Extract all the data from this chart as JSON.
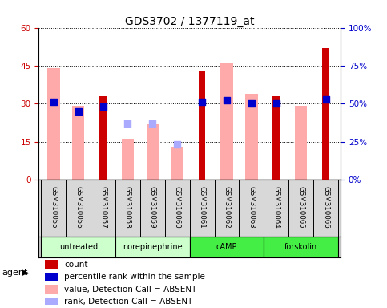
{
  "title": "GDS3702 / 1377119_at",
  "samples": [
    "GSM310055",
    "GSM310056",
    "GSM310057",
    "GSM310058",
    "GSM310059",
    "GSM310060",
    "GSM310061",
    "GSM310062",
    "GSM310063",
    "GSM310064",
    "GSM310065",
    "GSM310066"
  ],
  "agents": [
    {
      "label": "untreated",
      "start": 0,
      "end": 3,
      "color": "#aaffaa"
    },
    {
      "label": "norepinephrine",
      "start": 3,
      "end": 6,
      "color": "#aaffaa"
    },
    {
      "label": "cAMP",
      "start": 6,
      "end": 9,
      "color": "#44ee44"
    },
    {
      "label": "forskolin",
      "start": 9,
      "end": 12,
      "color": "#44ee44"
    }
  ],
  "count_bars": [
    null,
    null,
    33,
    null,
    null,
    null,
    43,
    null,
    null,
    33,
    null,
    52
  ],
  "count_color": "#cc0000",
  "value_absent_bars": [
    44,
    29,
    null,
    16,
    22,
    13,
    null,
    46,
    34,
    null,
    29,
    null
  ],
  "value_absent_color": "#ffaaaa",
  "rank_absent_dots": [
    null,
    null,
    null,
    22,
    22,
    14,
    null,
    null,
    null,
    null,
    null,
    null
  ],
  "rank_absent_color": "#aaaaff",
  "percentile_dots_pct": [
    51,
    45,
    48,
    null,
    null,
    null,
    51,
    52,
    50,
    50,
    null,
    53
  ],
  "percentile_color": "#0000cc",
  "ylim_left": [
    0,
    60
  ],
  "ylim_right": [
    0,
    100
  ],
  "yticks_left": [
    0,
    15,
    30,
    45,
    60
  ],
  "yticks_right": [
    0,
    25,
    50,
    75,
    100
  ],
  "yticklabels_left": [
    "0",
    "15",
    "30",
    "45",
    "60"
  ],
  "yticklabels_right": [
    "0%",
    "25%",
    "50%",
    "75%",
    "100%"
  ],
  "legend_items": [
    {
      "color": "#cc0000",
      "label": "count"
    },
    {
      "color": "#0000cc",
      "label": "percentile rank within the sample"
    },
    {
      "color": "#ffaaaa",
      "label": "value, Detection Call = ABSENT"
    },
    {
      "color": "#aaaaff",
      "label": "rank, Detection Call = ABSENT"
    }
  ],
  "count_bar_width": 0.28,
  "absent_bar_width": 0.5,
  "dot_size": 28,
  "agent_label": "agent",
  "tick_color_left": "#cc0000",
  "tick_color_right": "#0000cc",
  "grid_linestyle": "dotted",
  "bar_area_bg": "#ffffff",
  "sample_area_bg": "#d8d8d8",
  "agent_colors_light": "#bbffbb",
  "agent_colors_bright": "#44ee44"
}
